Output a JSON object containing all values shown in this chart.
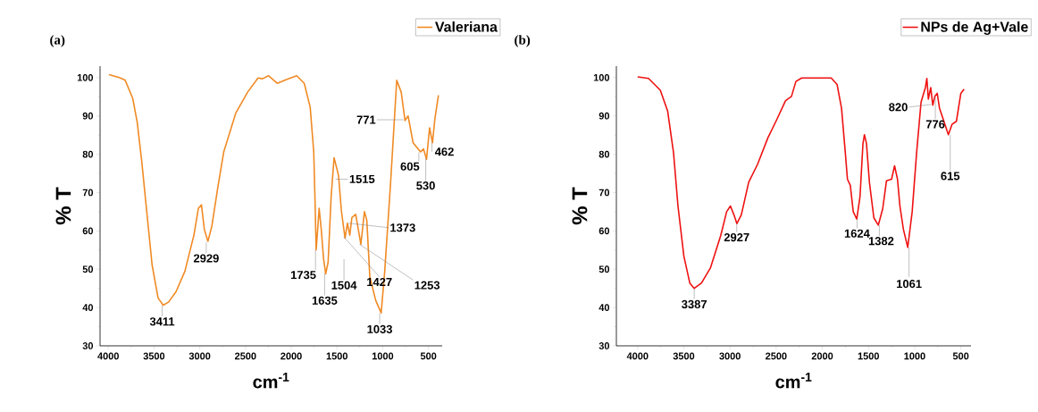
{
  "chart_data": [
    {
      "type": "line",
      "title": "(a)",
      "xlabel": "cm$^{-1}$",
      "ylabel": "% T",
      "xlim": [
        4090,
        350
      ],
      "ylim": [
        30,
        103
      ],
      "xticks": [
        4000,
        3500,
        3000,
        2500,
        2000,
        1500,
        1000,
        500
      ],
      "yticks": [
        30,
        40,
        50,
        60,
        70,
        80,
        90,
        100
      ],
      "legend": "top right",
      "series": [
        {
          "name": "Valeriana",
          "color": "#f08a24",
          "x": [
            3993,
            3880,
            3815,
            3733,
            3684,
            3635,
            3586,
            3521,
            3456,
            3400,
            3342,
            3260,
            3162,
            3064,
            3015,
            2982,
            2950,
            2911,
            2868,
            2803,
            2738,
            2607,
            2477,
            2363,
            2314,
            2249,
            2151,
            2053,
            1940,
            1858,
            1793,
            1754,
            1737,
            1728,
            1711,
            1695,
            1672,
            1646,
            1623,
            1597,
            1564,
            1532,
            1499,
            1483,
            1451,
            1412,
            1386,
            1360,
            1337,
            1295,
            1239,
            1200,
            1174,
            1141,
            1076,
            1017,
            978,
            913,
            847,
            798,
            756,
            723,
            668,
            586,
            554,
            521,
            488,
            456,
            430,
            391
          ],
          "values": [
            100.8,
            100,
            99.3,
            94.6,
            88.4,
            78.3,
            66.6,
            51.1,
            42.5,
            40.6,
            41.4,
            44.1,
            49.5,
            58.9,
            65.9,
            66.8,
            60.4,
            57.3,
            61.2,
            71.3,
            80.6,
            90.7,
            96.2,
            99.9,
            99.7,
            100.5,
            98.5,
            99.5,
            100.5,
            98.5,
            92.3,
            80.6,
            65.1,
            55,
            60.4,
            65.9,
            60.4,
            52.6,
            48.8,
            51.8,
            68.9,
            79.1,
            76,
            74.4,
            65.1,
            58.1,
            62,
            58.9,
            63.5,
            64.3,
            56.5,
            65,
            62.8,
            48,
            41.8,
            38.6,
            49.5,
            72.9,
            99.3,
            96.2,
            88.8,
            90,
            83,
            80.6,
            81.4,
            78.7,
            86.9,
            83,
            89.2,
            95.4
          ]
        }
      ],
      "annotations": [
        {
          "text": "3411",
          "x": 3411,
          "y": 40.5
        },
        {
          "text": "2929",
          "x": 2929,
          "y": 57
        },
        {
          "text": "1735",
          "x": 1735,
          "y": 55
        },
        {
          "text": "1635",
          "x": 1635,
          "y": 49
        },
        {
          "text": "1515",
          "x": 1515,
          "y": 73.5
        },
        "1504",
        {
          "text": "1427",
          "x": 1427,
          "y": 58.5
        },
        {
          "text": "1373",
          "x": 1373,
          "y": 62
        },
        {
          "text": "1253",
          "x": 1253,
          "y": 56.5
        },
        {
          "text": "1033",
          "x": 1033,
          "y": 38.5
        },
        {
          "text": "771",
          "x": 771,
          "y": 89
        },
        {
          "text": "605",
          "x": 605,
          "y": 80.5
        },
        {
          "text": "530",
          "x": 530,
          "y": 79
        },
        {
          "text": "462",
          "x": 462,
          "y": 83
        }
      ]
    },
    {
      "type": "line",
      "title": "(b)",
      "xlabel": "cm$^{-1}$",
      "ylabel": "% T",
      "xlim": [
        4230,
        390
      ],
      "ylim": [
        30,
        103
      ],
      "xticks": [
        4000,
        3500,
        3000,
        2500,
        2000,
        1500,
        1000,
        500
      ],
      "yticks": [
        30,
        40,
        50,
        60,
        70,
        80,
        90,
        100
      ],
      "legend": "top right",
      "series": [
        {
          "name": "NPs de Ag+Vale",
          "color": "#ee1111",
          "x": [
            4000,
            3882,
            3754,
            3675,
            3611,
            3563,
            3499,
            3435,
            3387,
            3308,
            3212,
            3100,
            3036,
            2995,
            2957,
            2925,
            2877,
            2797,
            2701,
            2589,
            2494,
            2398,
            2334,
            2286,
            2223,
            1904,
            1840,
            1792,
            1751,
            1728,
            1697,
            1665,
            1627,
            1592,
            1560,
            1544,
            1522,
            1490,
            1442,
            1394,
            1346,
            1305,
            1250,
            1218,
            1186,
            1160,
            1122,
            1075,
            1027,
            979,
            931,
            884,
            868,
            852,
            826,
            804,
            782,
            756,
            731,
            693,
            635,
            596,
            548,
            500,
            465
          ],
          "values": [
            100.2,
            99.8,
            96.7,
            91.3,
            80.4,
            66.5,
            53.4,
            46.4,
            45,
            46.4,
            50.3,
            58.8,
            65,
            66.5,
            64.2,
            61.9,
            64.2,
            72.7,
            77.4,
            84.3,
            89,
            94,
            95.1,
            99,
            99.9,
            99.9,
            98.2,
            92,
            80.4,
            73.5,
            71.9,
            65,
            63.1,
            68.9,
            82.8,
            85.1,
            82.8,
            72.7,
            63.4,
            61.5,
            65.8,
            73.1,
            73.5,
            77,
            73.5,
            66.5,
            60.4,
            55.7,
            65,
            80.4,
            93.6,
            97.4,
            99.8,
            94.4,
            97.4,
            92.8,
            95.1,
            95.9,
            92,
            89.3,
            85.1,
            87.8,
            88.6,
            95.9,
            97
          ]
        }
      ],
      "annotations": [
        {
          "text": "3387",
          "x": 3387,
          "y": 45
        },
        {
          "text": "2927",
          "x": 2927,
          "y": 62
        },
        {
          "text": "1624",
          "x": 1624,
          "y": 63
        },
        {
          "text": "1382",
          "x": 1382,
          "y": 61.5
        },
        {
          "text": "1061",
          "x": 1061,
          "y": 55.7
        },
        {
          "text": "820",
          "x": 820,
          "y": 93
        },
        {
          "text": "776",
          "x": 776,
          "y": 95
        },
        {
          "text": "615",
          "x": 615,
          "y": 85
        }
      ]
    }
  ]
}
